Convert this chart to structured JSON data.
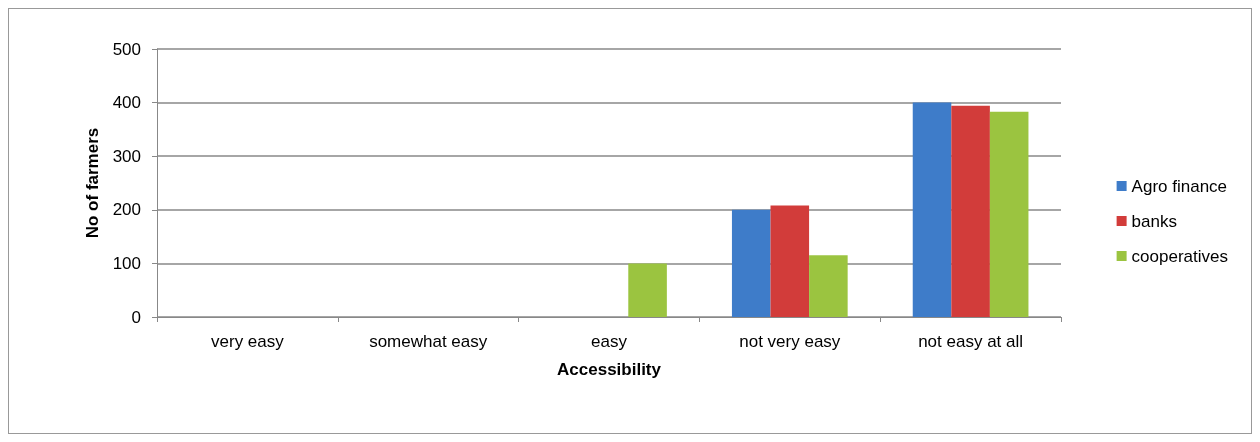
{
  "chart_data": {
    "type": "bar",
    "xlabel": "Accessibility",
    "ylabel": "No of farmers",
    "categories": [
      "very easy",
      "somewhat easy",
      "easy",
      "not very easy",
      "not easy at all"
    ],
    "series": [
      {
        "name": "Agro finance",
        "color": "#3e7cc9",
        "values": [
          0,
          0,
          0,
          200,
          400
        ]
      },
      {
        "name": "banks",
        "color": "#d23c3a",
        "values": [
          0,
          0,
          0,
          208,
          394
        ]
      },
      {
        "name": "cooperatives",
        "color": "#9bc440",
        "values": [
          0,
          0,
          100,
          115,
          383
        ]
      }
    ],
    "ylim": [
      0,
      500
    ],
    "yticks": [
      0,
      100,
      200,
      300,
      400,
      500
    ],
    "grid": "y",
    "legend": "right"
  }
}
